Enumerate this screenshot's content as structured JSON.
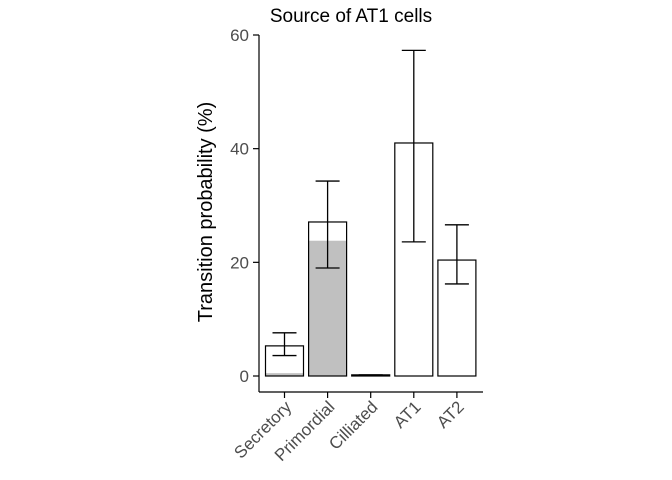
{
  "chart_data": {
    "type": "bar",
    "title": "Source of AT1 cells",
    "xlabel": "",
    "ylabel": "Transition probability (%)",
    "ylim": [
      0,
      60
    ],
    "yticks": [
      0,
      20,
      40,
      60
    ],
    "categories": [
      "Secretory",
      "Primordial",
      "Cilliated",
      "AT1",
      "AT2"
    ],
    "values": [
      5.3,
      27.1,
      0.2,
      41.0,
      20.4
    ],
    "filled_values": [
      0.5,
      23.8,
      0,
      0,
      0
    ],
    "error_low": [
      3.6,
      19.0,
      0.1,
      23.6,
      16.2
    ],
    "error_high": [
      7.6,
      34.3,
      0.2,
      57.3,
      26.6
    ],
    "grid": false,
    "legend": "none",
    "colors": {
      "bar_outline": "#000000",
      "filled": "#c0c0c0",
      "bar_fill": "#ffffff"
    }
  }
}
